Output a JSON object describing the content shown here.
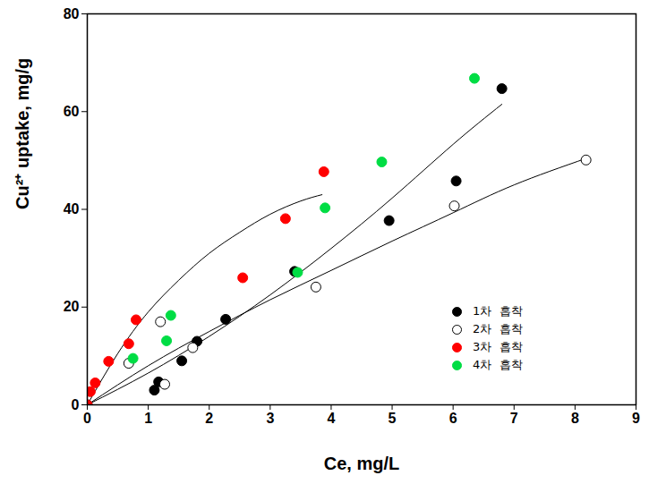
{
  "chart_data": {
    "type": "scatter",
    "x_label": "Ce, mg/L",
    "y_label": "Cu²⁺ uptake, mg/g",
    "xlim": [
      0,
      9
    ],
    "xticks": [
      0,
      1,
      2,
      3,
      4,
      5,
      6,
      7,
      8,
      9
    ],
    "ylim": [
      0,
      80
    ],
    "yticks": [
      0,
      20,
      40,
      60,
      80
    ],
    "grid": false,
    "legend": "lower right",
    "series": [
      {
        "name": "1차  흡착",
        "color": "#000000",
        "marker": "circle",
        "x": [
          0,
          1.1,
          1.17,
          1.55,
          1.8,
          2.27,
          3.4,
          4.95,
          6.05,
          6.8
        ],
        "values": [
          0,
          3.0,
          4.7,
          9.0,
          13.0,
          17.5,
          27.3,
          37.7,
          45.8,
          64.7
        ],
        "curve": {
          "x": [
            0,
            1,
            2,
            3,
            4,
            5,
            6,
            6.8
          ],
          "values": [
            0,
            6.5,
            14.0,
            22.5,
            32.0,
            42.3,
            53.3,
            61.5
          ]
        }
      },
      {
        "name": "2차  흡착",
        "color": "#000000",
        "marker": "circle-open",
        "x": [
          0.68,
          1.2,
          1.27,
          1.73,
          3.75,
          6.02,
          8.18
        ],
        "values": [
          8.5,
          17.0,
          4.2,
          11.7,
          24.1,
          40.7,
          50.1
        ],
        "curve": {
          "x": [
            0,
            1,
            2,
            3,
            4,
            5,
            6,
            7,
            8.2
          ],
          "values": [
            0,
            8.0,
            15.0,
            21.5,
            27.5,
            33.5,
            39.3,
            45.0,
            50.5
          ]
        }
      },
      {
        "name": "3차  흡착",
        "color": "#ff0000",
        "marker": "circle",
        "x": [
          0,
          0.05,
          0.13,
          0.35,
          0.68,
          0.8,
          2.55,
          3.25,
          3.88
        ],
        "values": [
          0,
          2.7,
          4.5,
          8.9,
          12.5,
          17.4,
          26.0,
          38.1,
          47.7
        ],
        "curve": {
          "x": [
            0,
            0.5,
            1,
            1.5,
            2,
            2.5,
            3,
            3.5,
            3.85
          ],
          "values": [
            0,
            10.5,
            19.0,
            25.5,
            31.0,
            35.3,
            39.0,
            41.7,
            43.0
          ]
        }
      },
      {
        "name": "4차  흡착",
        "color": "#00dd44",
        "marker": "circle",
        "x": [
          0.75,
          1.3,
          1.37,
          3.45,
          3.9,
          4.83,
          6.35
        ],
        "values": [
          9.5,
          13.1,
          18.3,
          27.1,
          40.3,
          49.7,
          66.8
        ]
      }
    ]
  }
}
